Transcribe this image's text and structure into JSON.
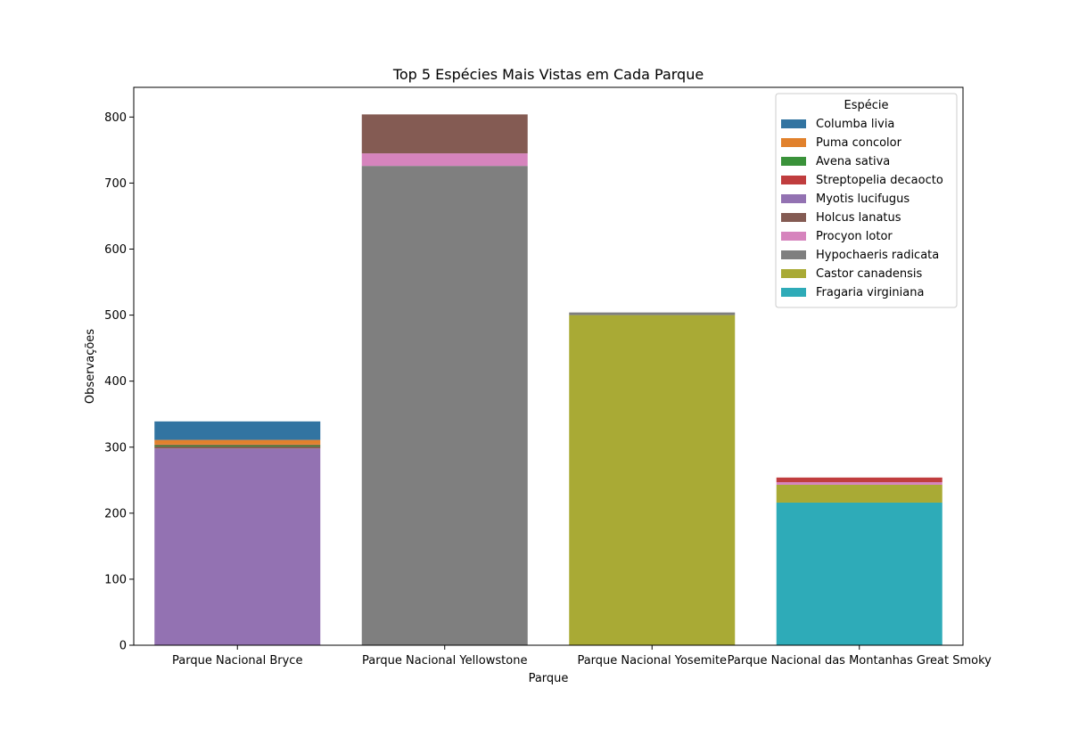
{
  "chart_data": {
    "type": "bar",
    "stacked": true,
    "title": "Top 5 Espécies Mais Vistas em Cada Parque",
    "xlabel": "Parque",
    "ylabel": "Observações",
    "categories": [
      "Parque Nacional Bryce",
      "Parque Nacional Yellowstone",
      "Parque Nacional Yosemite",
      "Parque Nacional das Montanhas Great Smoky"
    ],
    "ylim": [
      0,
      845
    ],
    "yticks": [
      "0",
      "100",
      "200",
      "300",
      "400",
      "500",
      "600",
      "700",
      "800"
    ],
    "grid": false,
    "legend": {
      "title": "Espécie",
      "placement": "top-right"
    },
    "series": [
      {
        "name": "Myotis lucifugus",
        "color": "#9372b2",
        "values": [
          298,
          0,
          0,
          0
        ]
      },
      {
        "name": "Holcus lanatus",
        "color": "#845b53",
        "values": [
          3,
          59,
          0,
          0
        ]
      },
      {
        "name": "Avena sativa",
        "color": "#3a923a",
        "values": [
          2,
          0,
          0,
          0
        ]
      },
      {
        "name": "Streptopelia decaocto",
        "color": "#c03d3e",
        "values": [
          1,
          0,
          0,
          7
        ]
      },
      {
        "name": "Puma concolor",
        "color": "#e1812c",
        "values": [
          7,
          0,
          0,
          0
        ]
      },
      {
        "name": "Columba livia",
        "color": "#3274a1",
        "values": [
          28,
          0,
          0,
          0
        ]
      },
      {
        "name": "Hypochaeris radicata",
        "color": "#7f7f7f",
        "values": [
          0,
          726,
          4,
          0
        ]
      },
      {
        "name": "Procyon lotor",
        "color": "#d684bd",
        "values": [
          0,
          19,
          0,
          4
        ]
      },
      {
        "name": "Castor canadensis",
        "color": "#a9aa35",
        "values": [
          0,
          0,
          500,
          27
        ]
      },
      {
        "name": "Fragaria virginiana",
        "color": "#2eabb8",
        "values": [
          0,
          0,
          0,
          216
        ]
      }
    ],
    "stack_order": [
      [
        0,
        1,
        2,
        3,
        4,
        5
      ],
      [
        6,
        7,
        1
      ],
      [
        8,
        6
      ],
      [
        9,
        8,
        7,
        3
      ]
    ],
    "legend_order": [
      5,
      4,
      2,
      3,
      0,
      1,
      7,
      6,
      8,
      9
    ]
  }
}
